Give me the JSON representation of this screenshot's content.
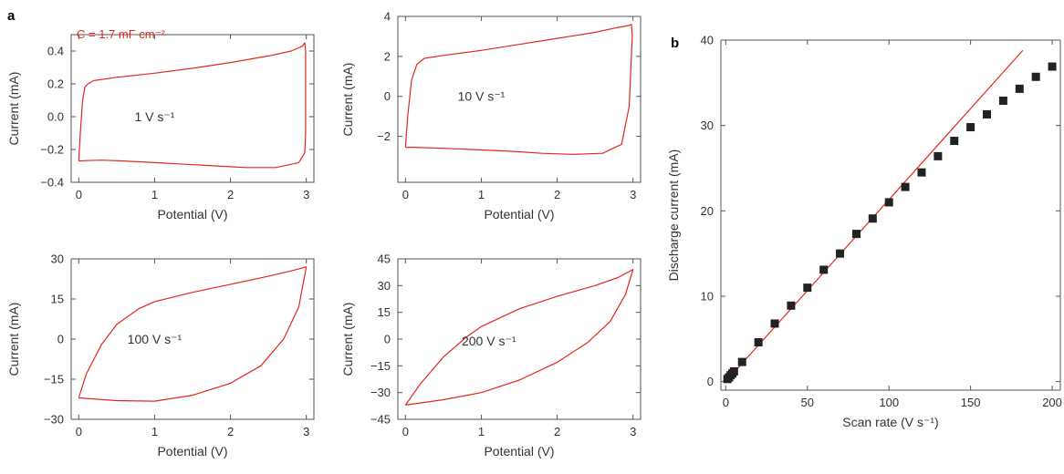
{
  "figure": {
    "panel_labels": [
      "a",
      "b"
    ]
  },
  "chart_data": [
    {
      "type": "line",
      "panel": "a",
      "xlabel": "Potential (V)",
      "ylabel": "Current (mA)",
      "xlim": [
        -0.1,
        3.1
      ],
      "ylim": [
        -0.4,
        0.5
      ],
      "xticks": [
        0,
        1,
        2,
        3
      ],
      "xtick_labels": [
        "0",
        "1",
        "2",
        "3"
      ],
      "yticks": [
        -0.4,
        -0.2,
        0.0,
        0.2,
        0.4
      ],
      "ytick_labels": [
        "−0.4",
        "−0.2",
        "0.0",
        "0.2",
        "0.4"
      ],
      "annotation": "1 V s⁻¹",
      "annotation_pos": [
        1.0,
        0.0
      ],
      "capacitance_note": "C = 1.7 mF cm⁻²",
      "color": "#e0281e",
      "series": [
        {
          "x": [
            0.0,
            0.02,
            0.05,
            0.08,
            0.12,
            0.2,
            0.5,
            1.0,
            1.5,
            2.0,
            2.5,
            2.8,
            2.95,
            2.98,
            2.99,
            2.99,
            2.98,
            2.9,
            2.6,
            2.2,
            1.8,
            1.4,
            1.0,
            0.6,
            0.3,
            0.1,
            0.0,
            0.0
          ],
          "y": [
            -0.27,
            -0.1,
            0.1,
            0.18,
            0.2,
            0.22,
            0.24,
            0.265,
            0.295,
            0.33,
            0.37,
            0.4,
            0.43,
            0.45,
            0.4,
            -0.1,
            -0.22,
            -0.28,
            -0.31,
            -0.31,
            -0.3,
            -0.29,
            -0.28,
            -0.27,
            -0.265,
            -0.268,
            -0.27,
            -0.27
          ]
        }
      ]
    },
    {
      "type": "line",
      "panel": "a",
      "xlabel": "Potential (V)",
      "ylabel": "Current (mA)",
      "xlim": [
        -0.1,
        3.1
      ],
      "ylim": [
        -4.3,
        4.0
      ],
      "xticks": [
        0,
        1,
        2,
        3
      ],
      "xtick_labels": [
        "0",
        "1",
        "2",
        "3"
      ],
      "yticks": [
        -2,
        0,
        2,
        4
      ],
      "ytick_labels": [
        "−2",
        "0",
        "2",
        "4"
      ],
      "annotation": "10 V s⁻¹",
      "annotation_pos": [
        1.0,
        0.0
      ],
      "color": "#e0281e",
      "series": [
        {
          "x": [
            0.0,
            0.03,
            0.08,
            0.15,
            0.25,
            0.5,
            1.0,
            1.5,
            2.0,
            2.5,
            2.8,
            2.95,
            2.98,
            2.99,
            2.95,
            2.85,
            2.6,
            2.2,
            1.8,
            1.4,
            1.0,
            0.5,
            0.1,
            0.0
          ],
          "y": [
            -2.55,
            -1.0,
            0.8,
            1.6,
            1.9,
            2.05,
            2.3,
            2.6,
            2.9,
            3.2,
            3.45,
            3.55,
            3.6,
            3.0,
            -0.5,
            -2.4,
            -2.85,
            -2.9,
            -2.85,
            -2.75,
            -2.68,
            -2.6,
            -2.55,
            -2.55
          ]
        }
      ]
    },
    {
      "type": "line",
      "panel": "a",
      "xlabel": "Potential (V)",
      "ylabel": "Current (mA)",
      "xlim": [
        -0.1,
        3.1
      ],
      "ylim": [
        -30,
        30
      ],
      "xticks": [
        0,
        1,
        2,
        3
      ],
      "xtick_labels": [
        "0",
        "1",
        "2",
        "3"
      ],
      "yticks": [
        -30,
        -15,
        0,
        15,
        30
      ],
      "ytick_labels": [
        "−30",
        "−15",
        "0",
        "15",
        "30"
      ],
      "annotation": "100 V s⁻¹",
      "annotation_pos": [
        1.0,
        0.0
      ],
      "color": "#e0281e",
      "series": [
        {
          "x": [
            0.0,
            0.1,
            0.3,
            0.5,
            0.8,
            1.0,
            1.5,
            2.0,
            2.5,
            2.8,
            3.0,
            2.9,
            2.7,
            2.4,
            2.0,
            1.5,
            1.0,
            0.5,
            0.0
          ],
          "y": [
            -22,
            -13,
            -2,
            5.5,
            11.5,
            14,
            17.5,
            20.5,
            23.5,
            25.5,
            27,
            12,
            0,
            -10,
            -16.5,
            -21,
            -23.2,
            -23,
            -22
          ]
        }
      ]
    },
    {
      "type": "line",
      "panel": "a",
      "xlabel": "Potential (V)",
      "ylabel": "Current (mA)",
      "xlim": [
        -0.1,
        3.1
      ],
      "ylim": [
        -45,
        45
      ],
      "xticks": [
        0,
        1,
        2,
        3
      ],
      "xtick_labels": [
        "0",
        "1",
        "2",
        "3"
      ],
      "yticks": [
        -45,
        -30,
        -15,
        0,
        15,
        30,
        45
      ],
      "ytick_labels": [
        "−45",
        "−30",
        "−15",
        "0",
        "15",
        "30",
        "45"
      ],
      "annotation": "200 V s⁻¹",
      "annotation_pos": [
        1.1,
        -1.0
      ],
      "color": "#e0281e",
      "series": [
        {
          "x": [
            0.0,
            0.2,
            0.5,
            0.8,
            1.0,
            1.5,
            2.0,
            2.5,
            2.8,
            3.0,
            2.9,
            2.7,
            2.4,
            2.0,
            1.5,
            1.0,
            0.5,
            0.0
          ],
          "y": [
            -37,
            -25,
            -10,
            1,
            7,
            17,
            24,
            30,
            34.5,
            39,
            25,
            10,
            -2,
            -13,
            -23,
            -30,
            -34,
            -37
          ]
        }
      ]
    },
    {
      "type": "scatter",
      "panel": "b",
      "xlabel": "Scan rate (V s⁻¹)",
      "ylabel": "Discharge current (mA)",
      "xlim": [
        -3,
        205
      ],
      "ylim": [
        -1,
        40
      ],
      "xticks": [
        0,
        50,
        100,
        150,
        200
      ],
      "xtick_labels": [
        "0",
        "50",
        "100",
        "150",
        "200"
      ],
      "yticks": [
        0,
        10,
        20,
        30,
        40
      ],
      "ytick_labels": [
        "0",
        "10",
        "20",
        "30",
        "40"
      ],
      "marker_color": "#222222",
      "fit_line": {
        "x": [
          0,
          182
        ],
        "y": [
          0,
          38.8
        ],
        "color": "#e0281e"
      },
      "series": [
        {
          "x": [
            1,
            2,
            3,
            4,
            5,
            10,
            20,
            30,
            40,
            50,
            60,
            70,
            80,
            90,
            100,
            110,
            120,
            130,
            140,
            150,
            160,
            170,
            180,
            190,
            200
          ],
          "y": [
            0.3,
            0.5,
            0.75,
            0.95,
            1.2,
            2.3,
            4.6,
            6.8,
            8.9,
            11.0,
            13.1,
            15.0,
            17.3,
            19.1,
            21.0,
            22.8,
            24.5,
            26.4,
            28.2,
            29.8,
            31.3,
            32.9,
            34.3,
            35.7,
            36.9
          ]
        }
      ]
    }
  ]
}
